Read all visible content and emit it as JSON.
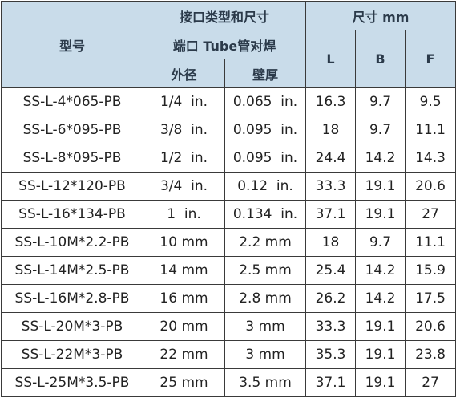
{
  "table": {
    "header": {
      "model": "型号",
      "connection": "接口类型和尺寸",
      "size": "尺寸 mm",
      "port": "端口 Tube管对焊",
      "od": "外径",
      "wall": "壁厚",
      "l": "L",
      "b": "B",
      "f": "F"
    },
    "rows": [
      [
        "SS-L-4*065-PB",
        "1/4  in.",
        "0.065  in.",
        "16.3",
        "9.7",
        "9.5"
      ],
      [
        "SS-L-6*095-PB",
        "3/8  in.",
        "0.095  in.",
        "18",
        "9.7",
        "11.1"
      ],
      [
        "SS-L-8*095-PB",
        "1/2  in.",
        "0.095  in.",
        "24.4",
        "14.2",
        "14.3"
      ],
      [
        "SS-L-12*120-PB",
        "3/4  in.",
        "0.12  in.",
        "33.3",
        "19.1",
        "20.6"
      ],
      [
        "SS-L-16*134-PB",
        "1  in.",
        "0.134  in.",
        "37.1",
        "19.1",
        "27"
      ],
      [
        "SS-L-10M*2.2-PB",
        "10 mm",
        "2.2 mm",
        "18",
        "9.7",
        "11.1"
      ],
      [
        "SS-L-14M*2.5-PB",
        "14 mm",
        "2.5 mm",
        "25.4",
        "14.2",
        "15.9"
      ],
      [
        "SS-L-16M*2.8-PB",
        "16 mm",
        "2.8 mm",
        "26.2",
        "14.2",
        "17.5"
      ],
      [
        "SS-L-20M*3-PB",
        "20 mm",
        "3 mm",
        "33.3",
        "19.1",
        "20.6"
      ],
      [
        "SS-L-22M*3-PB",
        "22 mm",
        "3 mm",
        "35.3",
        "19.1",
        "23.8"
      ],
      [
        "SS-L-25M*3.5-PB",
        "25 mm",
        "3.5 mm",
        "37.1",
        "19.1",
        "27"
      ]
    ]
  }
}
